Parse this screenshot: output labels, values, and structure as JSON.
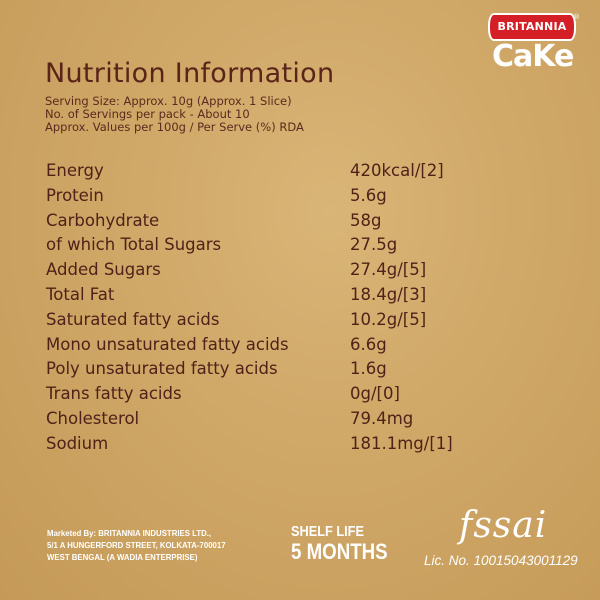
{
  "logo": {
    "brand": "BRITANNIA",
    "registered": "®",
    "product": "CaKe"
  },
  "title": "Nutrition Information",
  "serving_info": [
    "Serving Size: Approx. 10g (Approx. 1 Slice)",
    "No. of Servings per pack - About 10",
    "Approx. Values per 100g / Per Serve (%) RDA"
  ],
  "nutrients": [
    {
      "name": "Energy",
      "value": "420kcal/[2]"
    },
    {
      "name": "Protein",
      "value": "5.6g"
    },
    {
      "name": "Carbohydrate",
      "value": "58g"
    },
    {
      "name": "of which Total Sugars",
      "value": "27.5g"
    },
    {
      "name": "Added Sugars",
      "value": "27.4g/[5]"
    },
    {
      "name": "Total Fat",
      "value": "18.4g/[3]"
    },
    {
      "name": "Saturated fatty acids",
      "value": "10.2g/[5]"
    },
    {
      "name": "Mono unsaturated fatty acids",
      "value": "6.6g"
    },
    {
      "name": "Poly unsaturated fatty acids",
      "value": "1.6g"
    },
    {
      "name": "Trans fatty acids",
      "value": "0g/[0]"
    },
    {
      "name": "Cholesterol",
      "value": "79.4mg"
    },
    {
      "name": "Sodium",
      "value": "181.1mg/[1]"
    }
  ],
  "footer": {
    "marketed_by": [
      "Marketed By: BRITANNIA INDUSTRIES LTD.,",
      "5/1 A HUNGERFORD STREET, KOLKATA-700017",
      "WEST BENGAL (A WADIA ENTERPRISE)"
    ],
    "shelf_life_label": "SHELF LIFE",
    "shelf_life_value": "5 MONTHS",
    "fssai_logo": "fssai",
    "license": "Lic. No. 10015043001129"
  }
}
